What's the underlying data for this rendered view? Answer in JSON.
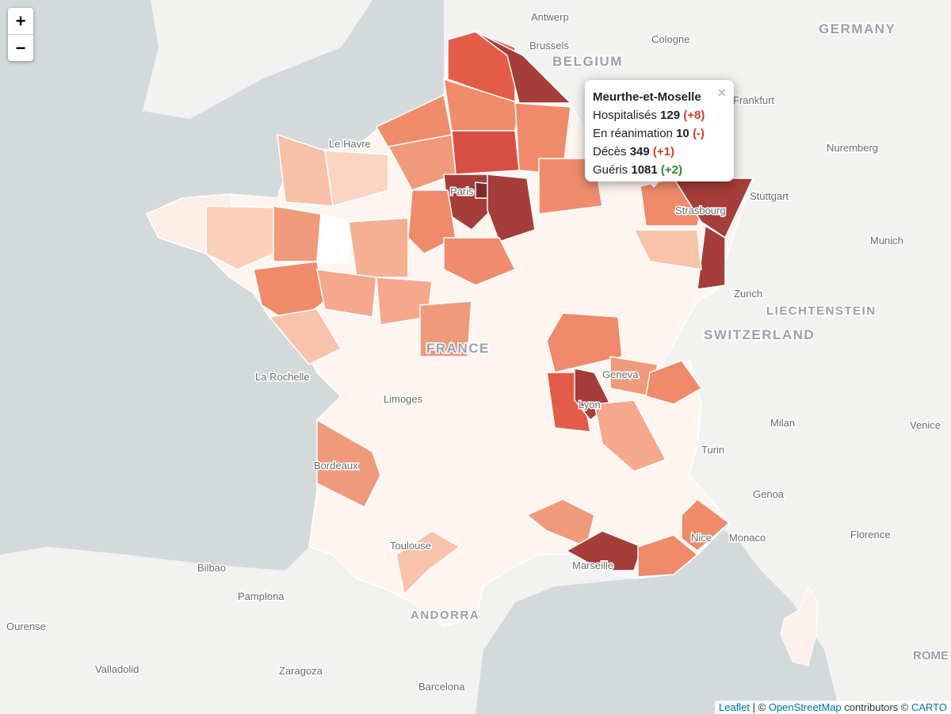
{
  "zoom": {
    "in": "+",
    "out": "−"
  },
  "popup": {
    "title": "Meurthe-et-Moselle",
    "close": "×",
    "rows": [
      {
        "label": "Hospitalisés",
        "value": 129,
        "change": "(+8)",
        "trend": "up"
      },
      {
        "label": "En réanimation",
        "value": 10,
        "change": "(-)",
        "trend": "up"
      },
      {
        "label": "Décès",
        "value": 349,
        "change": "(+1)",
        "trend": "up"
      },
      {
        "label": "Guéris",
        "value": 1081,
        "change": "(+2)",
        "trend": "down"
      }
    ]
  },
  "places": {
    "countries": [
      "GERMANY",
      "BELGIUM",
      "FRANCE",
      "SWITZERLAND",
      "LIECHTENSTEIN",
      "ANDORRA"
    ],
    "cities": [
      "Antwerp",
      "Brussels",
      "Cologne",
      "Le Havre",
      "Frankfurt",
      "Nuremberg",
      "Stuttgart",
      "Strasbourg",
      "Munich",
      "Zurich",
      "Paris",
      "Geneva",
      "La Rochelle",
      "Limoges",
      "Lyon",
      "Milan",
      "Venice",
      "Turin",
      "Bordeaux",
      "Genoa",
      "Toulouse",
      "Monaco",
      "Nice",
      "Florence",
      "Marseille",
      "Bilbao",
      "Pamplona",
      "Ourense",
      "Valladolid",
      "Zaragoza",
      "Barcelona",
      "ROME"
    ]
  },
  "attribution": [
    "Leaflet",
    " | © ",
    "OpenStreetMap",
    " contributors © ",
    "CARTO"
  ]
}
